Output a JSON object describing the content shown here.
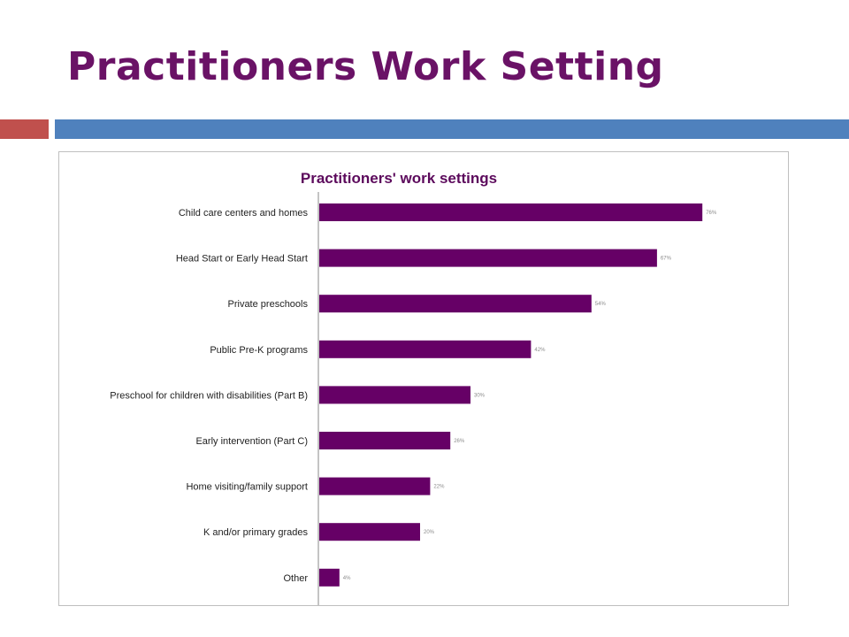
{
  "slide": {
    "title": "Practitioners Work Setting",
    "colors": {
      "title": "#6a1266",
      "accent_red": "#c0504d",
      "accent_blue": "#4f81bd"
    }
  },
  "chart_data": {
    "type": "bar",
    "orientation": "horizontal",
    "title": "Practitioners' work settings",
    "xlabel": "",
    "ylabel": "",
    "categories": [
      "Child care centers and homes",
      "Head Start or Early Head Start",
      "Private preschools",
      "Public Pre-K programs",
      "Preschool for children with disabilities (Part B)",
      "Early intervention (Part C)",
      "Home visiting/family support",
      "K and/or primary grades",
      "Other"
    ],
    "values": [
      76,
      67,
      54,
      42,
      30,
      26,
      22,
      20,
      4
    ],
    "value_labels": [
      "76%",
      "67%",
      "54%",
      "42%",
      "30%",
      "26%",
      "22%",
      "20%",
      "4%"
    ],
    "xlim": [
      0,
      100
    ],
    "grid": false,
    "legend": "none",
    "bar_color": "#660066"
  }
}
